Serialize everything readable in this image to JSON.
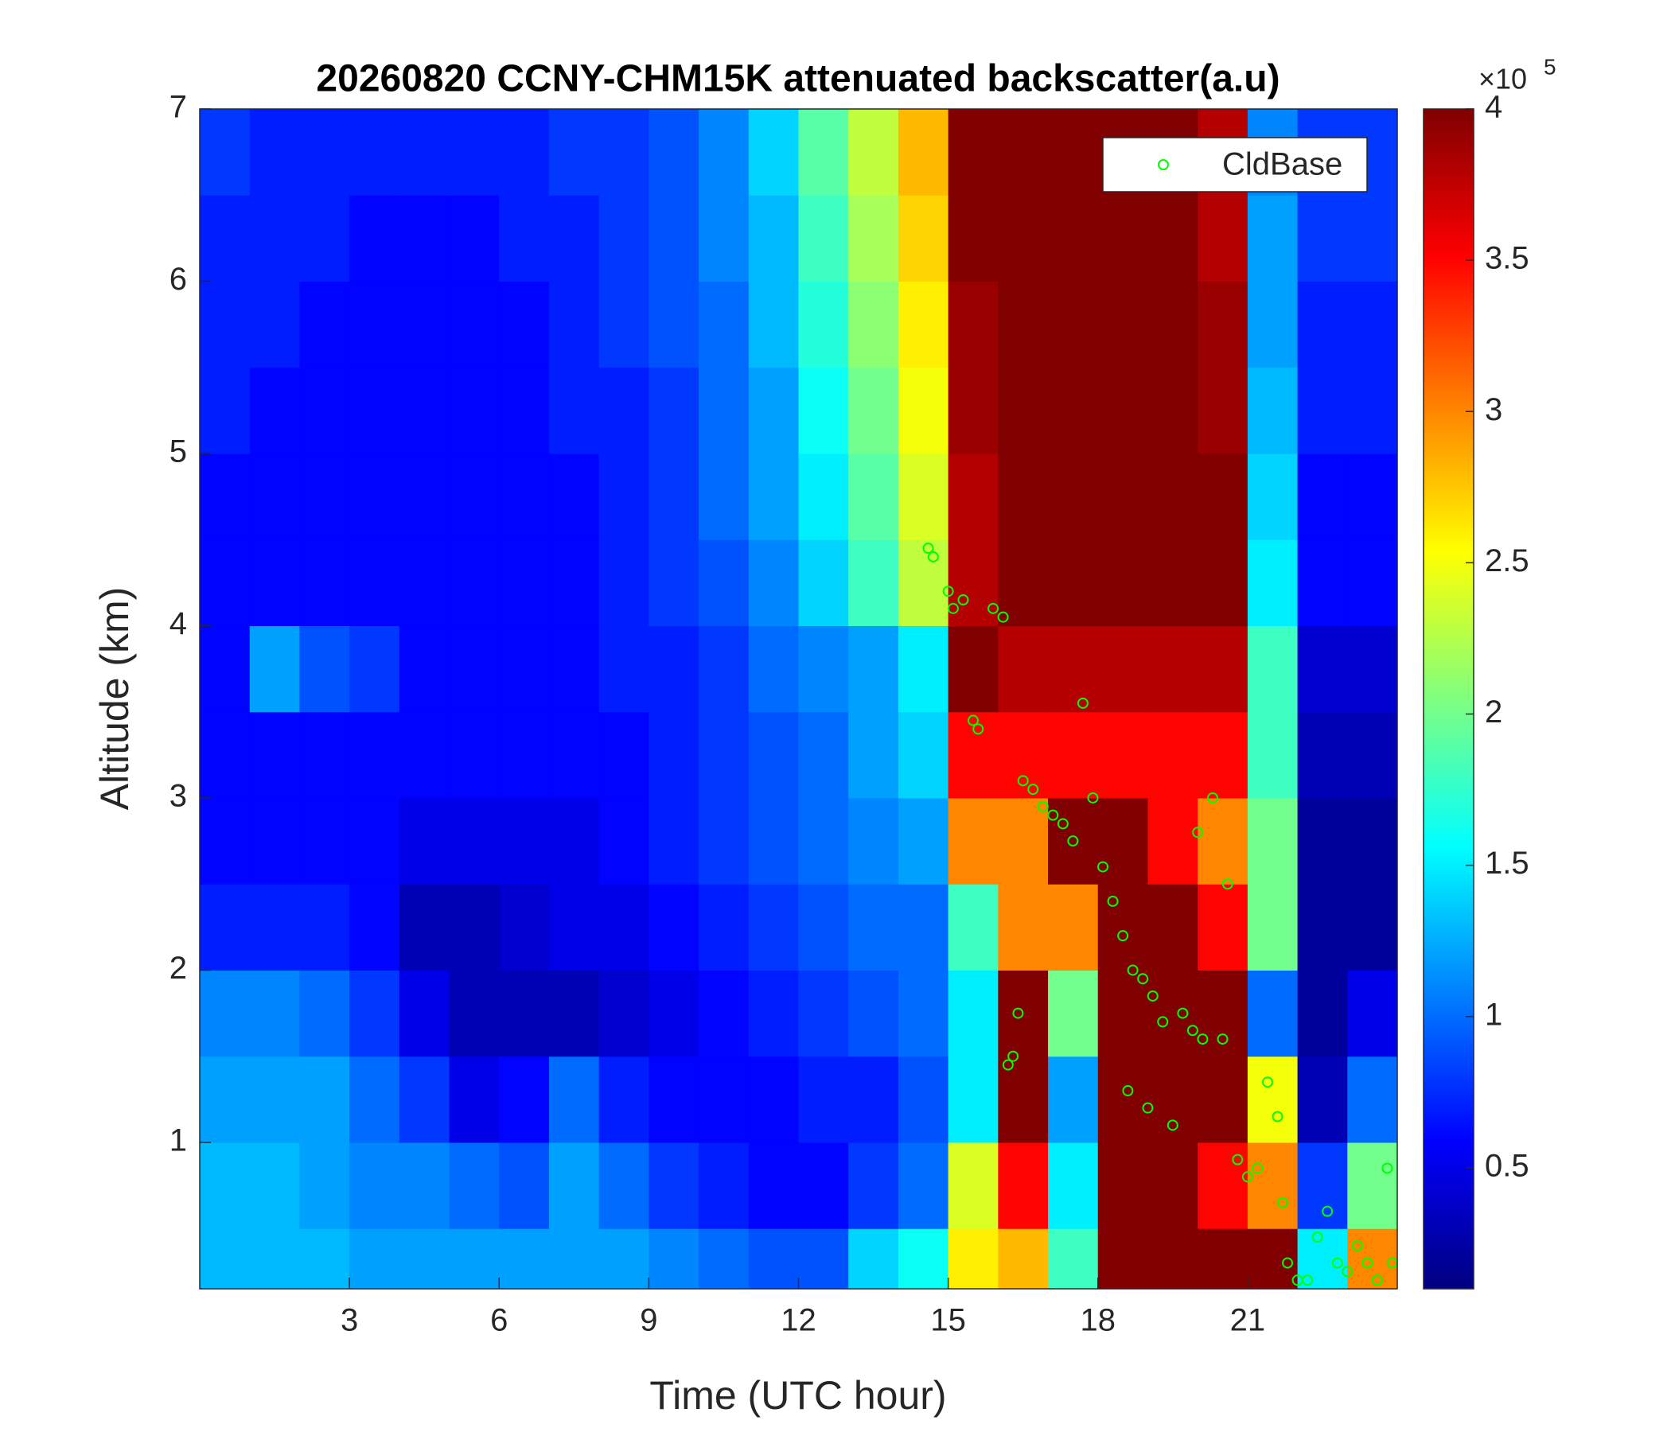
{
  "chart_data": {
    "type": "heatmap",
    "title": "20260820 CCNY-CHM15K attenuated backscatter(a.u)",
    "xlabel": "Time (UTC hour)",
    "ylabel": "Altitude (km)",
    "xlim": [
      0,
      24
    ],
    "xticks": [
      3,
      6,
      9,
      12,
      15,
      18,
      21
    ],
    "ylim": [
      0.15,
      7
    ],
    "yticks": [
      1,
      2,
      3,
      4,
      5,
      6,
      7
    ],
    "colormap": "jet",
    "clim": [
      0.1,
      4
    ],
    "colorbar_ticks": [
      0.5,
      1,
      1.5,
      2,
      2.5,
      3,
      3.5,
      4
    ],
    "colorbar_multiplier": "×10",
    "colorbar_exponent": "5",
    "x_edges": [
      0,
      1,
      2,
      3,
      4,
      5,
      6,
      7,
      8,
      9,
      10,
      11,
      12,
      13,
      14,
      15,
      16,
      17,
      18,
      19,
      20,
      21,
      22,
      23,
      24
    ],
    "y_edges": [
      0.15,
      0.5,
      1,
      1.5,
      2,
      2.5,
      3,
      3.5,
      4,
      4.5,
      5,
      5.5,
      6,
      6.5,
      7
    ],
    "z": [
      [
        1.3,
        1.3,
        1.3,
        1.2,
        1.2,
        1.2,
        1.2,
        1.2,
        1.2,
        1.1,
        1.0,
        0.9,
        0.9,
        1.4,
        1.6,
        2.6,
        2.8,
        1.8,
        4,
        4,
        4,
        4,
        1.5,
        3
      ],
      [
        1.3,
        1.3,
        1.2,
        1.1,
        1.1,
        1.0,
        0.9,
        1.2,
        1.0,
        0.8,
        0.7,
        0.6,
        0.6,
        0.8,
        1.0,
        2.4,
        3.5,
        1.5,
        4,
        4,
        3.5,
        3,
        0.8,
        2
      ],
      [
        1.2,
        1.2,
        1.2,
        1.0,
        0.8,
        0.5,
        0.6,
        1.0,
        0.7,
        0.6,
        0.6,
        0.6,
        0.7,
        0.7,
        0.9,
        1.5,
        4,
        1.2,
        4,
        4,
        4,
        2.5,
        0.3,
        1
      ],
      [
        1.1,
        1.1,
        1.0,
        0.8,
        0.5,
        0.3,
        0.3,
        0.3,
        0.4,
        0.5,
        0.6,
        0.7,
        0.8,
        0.9,
        1.0,
        1.5,
        4,
        2,
        4,
        4,
        4,
        1,
        0.2,
        0.5
      ],
      [
        0.7,
        0.7,
        0.7,
        0.6,
        0.3,
        0.3,
        0.4,
        0.5,
        0.5,
        0.6,
        0.7,
        0.8,
        0.9,
        1.0,
        1.0,
        1.8,
        3,
        3,
        4,
        4,
        3.5,
        2,
        0.2,
        0.2
      ],
      [
        0.6,
        0.6,
        0.6,
        0.6,
        0.5,
        0.5,
        0.5,
        0.5,
        0.6,
        0.7,
        0.8,
        0.9,
        1.0,
        1.1,
        1.2,
        3,
        3,
        4,
        4,
        3.5,
        3,
        2,
        0.2,
        0.2
      ],
      [
        0.6,
        0.6,
        0.6,
        0.6,
        0.6,
        0.6,
        0.6,
        0.6,
        0.6,
        0.7,
        0.8,
        0.9,
        1.0,
        1.2,
        1.4,
        3.5,
        3.5,
        3.5,
        3.5,
        3.5,
        3.5,
        1.8,
        0.3,
        0.3
      ],
      [
        0.6,
        1.2,
        0.9,
        0.8,
        0.6,
        0.6,
        0.6,
        0.6,
        0.7,
        0.7,
        0.8,
        1.0,
        1.1,
        1.2,
        1.5,
        4,
        3.8,
        3.8,
        3.8,
        3.8,
        3.8,
        1.8,
        0.4,
        0.4
      ],
      [
        0.6,
        0.6,
        0.6,
        0.6,
        0.6,
        0.6,
        0.6,
        0.6,
        0.7,
        0.8,
        0.9,
        1.1,
        1.4,
        1.8,
        2.3,
        3.8,
        4,
        4,
        4,
        4,
        4,
        1.5,
        0.6,
        0.6
      ],
      [
        0.6,
        0.6,
        0.6,
        0.6,
        0.6,
        0.6,
        0.6,
        0.6,
        0.7,
        0.8,
        1.0,
        1.2,
        1.5,
        1.9,
        2.4,
        3.8,
        4,
        4,
        4,
        4,
        4,
        1.4,
        0.6,
        0.6
      ],
      [
        0.7,
        0.6,
        0.6,
        0.6,
        0.6,
        0.6,
        0.6,
        0.7,
        0.7,
        0.8,
        1.0,
        1.2,
        1.6,
        2.0,
        2.5,
        3.9,
        4,
        4,
        4,
        4,
        3.9,
        1.3,
        0.7,
        0.7
      ],
      [
        0.7,
        0.7,
        0.6,
        0.6,
        0.6,
        0.6,
        0.6,
        0.7,
        0.8,
        0.9,
        1.0,
        1.3,
        1.7,
        2.1,
        2.6,
        3.9,
        4,
        4,
        4,
        4,
        3.9,
        1.2,
        0.7,
        0.7
      ],
      [
        0.7,
        0.7,
        0.7,
        0.6,
        0.6,
        0.6,
        0.7,
        0.7,
        0.8,
        0.9,
        1.1,
        1.3,
        1.8,
        2.2,
        2.7,
        4,
        4,
        4,
        4,
        4,
        3.8,
        1.2,
        0.8,
        0.8
      ],
      [
        0.8,
        0.7,
        0.7,
        0.7,
        0.7,
        0.7,
        0.7,
        0.8,
        0.8,
        0.9,
        1.1,
        1.4,
        1.9,
        2.3,
        2.8,
        4,
        4,
        4,
        4,
        4,
        3.8,
        1.1,
        0.8,
        0.8
      ]
    ],
    "legend_loc": "upper right",
    "series": [
      {
        "name": "CldBase",
        "type": "scatter",
        "color": "#00ff00",
        "x": [
          14.6,
          14.7,
          15.0,
          15.1,
          15.3,
          15.5,
          15.6,
          15.9,
          16.1,
          16.2,
          16.3,
          16.4,
          16.5,
          16.7,
          16.9,
          17.1,
          17.3,
          17.5,
          17.7,
          17.9,
          18.1,
          18.3,
          18.5,
          18.7,
          18.9,
          19.1,
          19.3,
          19.5,
          19.7,
          19.9,
          20.1,
          20.3,
          20.5,
          20.6,
          20.8,
          21.0,
          21.2,
          21.4,
          21.6,
          21.7,
          21.8,
          22.0,
          22.2,
          22.4,
          22.6,
          22.8,
          23.0,
          23.2,
          23.4,
          23.6,
          23.8,
          23.9,
          19.0,
          18.6,
          20.0
        ],
        "y": [
          4.45,
          4.4,
          4.2,
          4.1,
          4.15,
          3.45,
          3.4,
          4.1,
          4.05,
          1.45,
          1.5,
          1.75,
          3.1,
          3.05,
          2.95,
          2.9,
          2.85,
          2.75,
          3.55,
          3.0,
          2.6,
          2.4,
          2.2,
          2.0,
          1.95,
          1.85,
          1.7,
          1.1,
          1.75,
          1.65,
          1.6,
          3.0,
          1.6,
          2.5,
          0.9,
          0.8,
          0.85,
          1.35,
          1.15,
          0.65,
          0.3,
          0.2,
          0.2,
          0.45,
          0.6,
          0.3,
          0.25,
          0.4,
          0.3,
          0.2,
          0.85,
          0.3,
          1.2,
          1.3,
          2.8
        ]
      }
    ]
  }
}
